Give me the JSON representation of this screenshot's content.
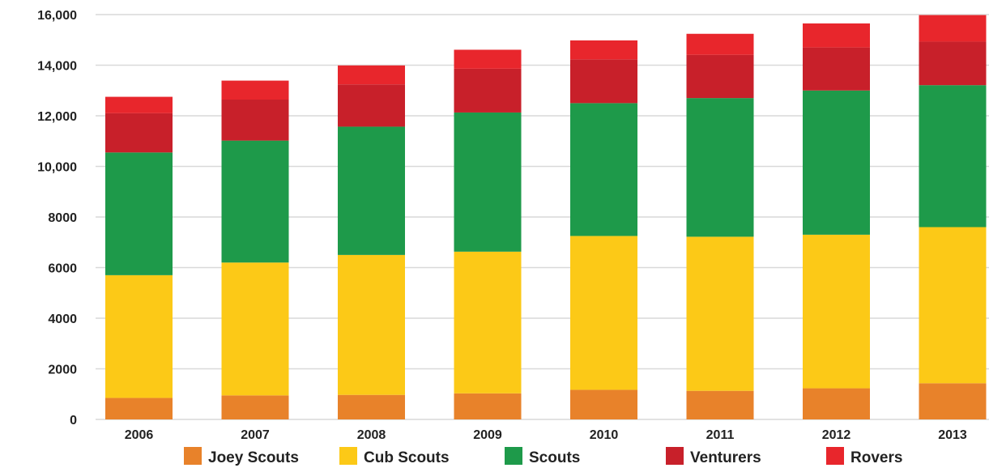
{
  "chart_data": {
    "type": "bar",
    "stacked": true,
    "categories": [
      "2006",
      "2007",
      "2008",
      "2009",
      "2010",
      "2011",
      "2012",
      "2013"
    ],
    "series": [
      {
        "name": "Joey Scouts",
        "color": "#E8822A",
        "values": [
          850,
          950,
          970,
          1030,
          1170,
          1130,
          1230,
          1430
        ]
      },
      {
        "name": "Cub Scouts",
        "color": "#FCC917",
        "values": [
          4850,
          5250,
          5530,
          5600,
          6080,
          6090,
          6070,
          6170
        ]
      },
      {
        "name": "Scouts",
        "color": "#1E9A4A",
        "values": [
          4850,
          4820,
          5070,
          5500,
          5250,
          5480,
          5700,
          5610
        ]
      },
      {
        "name": "Venturers",
        "color": "#C8202A",
        "values": [
          1550,
          1620,
          1670,
          1730,
          1730,
          1710,
          1700,
          1720
        ]
      },
      {
        "name": "Rovers",
        "color": "#E8262C",
        "values": [
          650,
          750,
          750,
          750,
          750,
          830,
          950,
          1050
        ]
      }
    ],
    "yticks": [
      "16,000",
      "14,000",
      "12,000",
      "10,000",
      "8000",
      "6000",
      "4000",
      "2000",
      "0"
    ],
    "ylim": [
      0,
      16000
    ],
    "grid": true,
    "legend_position": "bottom"
  }
}
